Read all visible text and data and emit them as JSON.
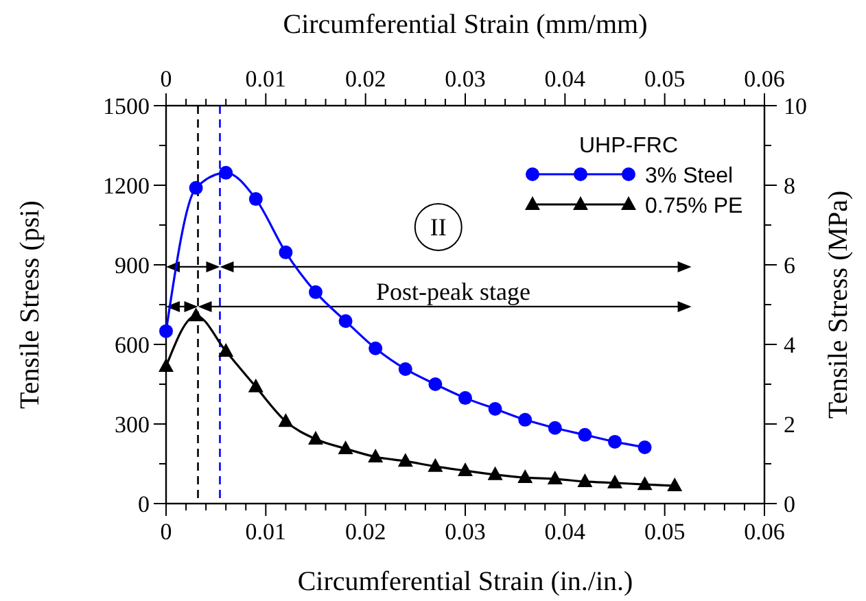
{
  "chart_data": {
    "type": "line",
    "xlabel": "Circumferential Strain (in./in.)",
    "ylabel": "Tensile Stress (psi)",
    "y2label": "Tensile Stress (MPa)",
    "x2label": "Circumferential Strain (mm/mm)",
    "legend_title": "UHP-FRC",
    "legend": "top right",
    "line_style": "solid",
    "grid": false,
    "xlim": [
      0,
      0.06
    ],
    "ylim": [
      0,
      1500
    ],
    "y2lim": [
      0,
      10
    ],
    "x2lim": [
      0,
      0.06
    ],
    "xticks": [
      0,
      {
        "value": 0.002,
        "label": null
      },
      {
        "value": 0.004,
        "label": null
      },
      {
        "value": 0.006,
        "label": null
      },
      {
        "value": 0.008,
        "label": null
      },
      0.01,
      {
        "value": 0.012,
        "label": null
      },
      {
        "value": 0.014,
        "label": null
      },
      {
        "value": 0.016,
        "label": null
      },
      {
        "value": 0.018,
        "label": null
      },
      0.02,
      {
        "value": 0.022,
        "label": null
      },
      {
        "value": 0.024,
        "label": null
      },
      {
        "value": 0.026,
        "label": null
      },
      {
        "value": 0.028,
        "label": null
      },
      0.03,
      {
        "value": 0.032,
        "label": null
      },
      {
        "value": 0.034,
        "label": null
      },
      {
        "value": 0.036,
        "label": null
      },
      {
        "value": 0.038,
        "label": null
      },
      0.04,
      {
        "value": 0.042,
        "label": null
      },
      {
        "value": 0.044,
        "label": null
      },
      {
        "value": 0.046,
        "label": null
      },
      {
        "value": 0.048,
        "label": null
      },
      0.05,
      {
        "value": 0.052,
        "label": null
      },
      {
        "value": 0.054,
        "label": null
      },
      {
        "value": 0.056,
        "label": null
      },
      {
        "value": 0.058,
        "label": null
      },
      0.06
    ],
    "x2ticks": [
      0,
      {
        "value": 0.002,
        "label": null
      },
      {
        "value": 0.004,
        "label": null
      },
      {
        "value": 0.006,
        "label": null
      },
      {
        "value": 0.008,
        "label": null
      },
      0.01,
      {
        "value": 0.012,
        "label": null
      },
      {
        "value": 0.014,
        "label": null
      },
      {
        "value": 0.016,
        "label": null
      },
      {
        "value": 0.018,
        "label": null
      },
      0.02,
      {
        "value": 0.022,
        "label": null
      },
      {
        "value": 0.024,
        "label": null
      },
      {
        "value": 0.026,
        "label": null
      },
      {
        "value": 0.028,
        "label": null
      },
      0.03,
      {
        "value": 0.032,
        "label": null
      },
      {
        "value": 0.034,
        "label": null
      },
      {
        "value": 0.036,
        "label": null
      },
      {
        "value": 0.038,
        "label": null
      },
      0.04,
      {
        "value": 0.042,
        "label": null
      },
      {
        "value": 0.044,
        "label": null
      },
      {
        "value": 0.046,
        "label": null
      },
      {
        "value": 0.048,
        "label": null
      },
      0.05,
      {
        "value": 0.052,
        "label": null
      },
      {
        "value": 0.054,
        "label": null
      },
      {
        "value": 0.056,
        "label": null
      },
      {
        "value": 0.058,
        "label": null
      },
      0.06
    ],
    "yticks": [
      0,
      {
        "value": 150,
        "label": null
      },
      300,
      {
        "value": 450,
        "label": null
      },
      600,
      {
        "value": 750,
        "label": null
      },
      900,
      {
        "value": 1050,
        "label": null
      },
      1200,
      {
        "value": 1350,
        "label": null
      },
      1500
    ],
    "y2ticks": [
      0,
      {
        "value": 1,
        "label": null
      },
      2,
      {
        "value": 3,
        "label": null
      },
      4,
      {
        "value": 5,
        "label": null
      },
      6,
      {
        "value": 7,
        "label": null
      },
      8,
      {
        "value": 9,
        "label": null
      },
      10
    ],
    "series": [
      {
        "name": "3% Steel",
        "color": "#0000ff",
        "marker": "circle",
        "x": [
          0,
          0.003,
          0.006,
          0.009,
          0.012,
          0.015,
          0.018,
          0.021,
          0.024,
          0.027,
          0.03,
          0.033,
          0.036,
          0.039,
          0.042,
          0.045,
          0.048
        ],
        "values": [
          650,
          1190,
          1247,
          1148,
          947,
          797,
          688,
          585,
          507,
          450,
          398,
          357,
          316,
          285,
          259,
          233,
          212
        ]
      },
      {
        "name": "0.75% PE",
        "color": "#000000",
        "marker": "triangle",
        "x": [
          0,
          0.003,
          0.006,
          0.009,
          0.012,
          0.015,
          0.018,
          0.021,
          0.024,
          0.027,
          0.03,
          0.033,
          0.036,
          0.039,
          0.042,
          0.045,
          0.048,
          0.051
        ],
        "values": [
          517,
          708,
          574,
          440,
          310,
          243,
          207,
          176,
          160,
          140,
          124,
          109,
          98,
          93,
          83,
          78,
          72,
          67
        ]
      }
    ],
    "ref_lines": [
      {
        "axis": "x",
        "value": 0.0032,
        "color": "#000000",
        "line_style": "dashed"
      },
      {
        "axis": "x",
        "value": 0.0054,
        "color": "#0000ff",
        "line_style": "dashed"
      }
    ],
    "annotations": [
      "II",
      "Post-peak stage"
    ]
  }
}
